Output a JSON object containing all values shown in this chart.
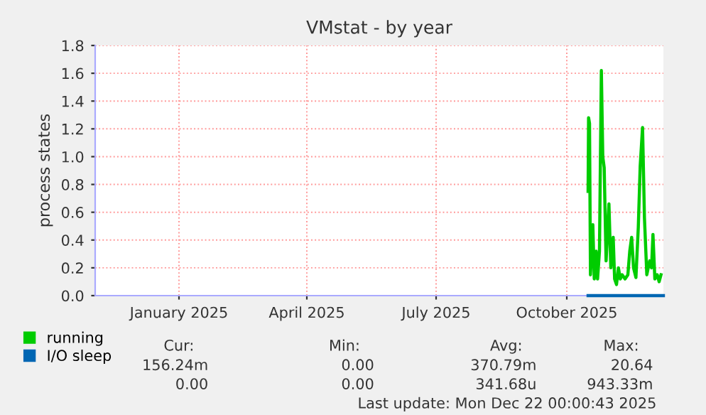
{
  "chart_data": {
    "type": "line",
    "title": "VMstat - by year",
    "ylabel": "process states",
    "xlim": [
      "2024-11-03",
      "2025-12-08"
    ],
    "xticks": [
      {
        "value": "2025-01-01",
        "label": "January 2025"
      },
      {
        "value": "2025-04-01",
        "label": "April 2025"
      },
      {
        "value": "2025-07-01",
        "label": "July 2025"
      },
      {
        "value": "2025-10-01",
        "label": "October 2025"
      }
    ],
    "ylim": [
      0,
      1.8
    ],
    "yticks": [
      {
        "value": 0,
        "label": "0.0"
      },
      {
        "value": 0.2,
        "label": "0.2"
      },
      {
        "value": 0.4,
        "label": "0.4"
      },
      {
        "value": 0.6,
        "label": "0.6"
      },
      {
        "value": 0.8,
        "label": "0.8"
      },
      {
        "value": 1.0,
        "label": "1.0"
      },
      {
        "value": 1.2,
        "label": "1.2"
      },
      {
        "value": 1.4,
        "label": "1.4"
      },
      {
        "value": 1.6,
        "label": "1.6"
      },
      {
        "value": 1.8,
        "label": "1.8"
      }
    ],
    "grid": true,
    "legend": "bottom left",
    "marker": "none",
    "line_style": "solid",
    "series": [
      {
        "name": "running",
        "color": "#00cc00",
        "x": [
          "2025-10-16",
          "2025-10-16T08:00",
          "2025-10-17",
          "2025-10-17T16:00",
          "2025-10-19T08:00",
          "2025-10-20T08:00",
          "2025-10-21T16:00",
          "2025-10-22T16:00",
          "2025-10-24",
          "2025-10-25T08:00",
          "2025-10-26T08:00",
          "2025-10-27T08:00",
          "2025-10-28T16:00",
          "2025-10-30T16:00",
          "2025-11-01",
          "2025-11-02T16:00",
          "2025-11-03T16:00",
          "2025-11-05",
          "2025-11-06T08:00",
          "2025-11-07T16:00",
          "2025-11-09",
          "2025-11-11",
          "2025-11-13",
          "2025-11-14T08:00",
          "2025-11-15T16:00",
          "2025-11-17",
          "2025-11-18T16:00",
          "2025-11-20T08:00",
          "2025-11-21T16:00",
          "2025-11-23T08:00",
          "2025-11-24T16:00",
          "2025-11-26T08:00",
          "2025-11-28T08:00",
          "2025-11-29T16:00",
          "2025-11-30T16:00",
          "2025-12-02",
          "2025-12-03T16:00",
          "2025-12-05",
          "2025-12-06T08:00"
        ],
        "values": [
          0.75,
          1.28,
          1.24,
          0.15,
          0.51,
          0.12,
          0.32,
          0.12,
          0.32,
          1.62,
          1.0,
          0.92,
          0.25,
          0.66,
          0.2,
          0.42,
          0.12,
          0.08,
          0.2,
          0.12,
          0.15,
          0.12,
          0.15,
          0.32,
          0.42,
          0.2,
          0.13,
          0.49,
          0.93,
          1.21,
          0.56,
          0.15,
          0.25,
          0.2,
          0.44,
          0.12,
          0.15,
          0.1,
          0.15
        ]
      },
      {
        "name": "I/O sleep",
        "color": "#0066b3",
        "x": [
          "2025-10-16",
          "2025-12-08"
        ],
        "values": [
          0,
          0
        ]
      }
    ],
    "annotations": [
      "Cur:",
      "Min:",
      "Avg:",
      "Max:",
      "156.24m",
      "0.00",
      "370.79m",
      "20.64",
      "0.00",
      "0.00",
      "341.68u",
      "943.33m",
      "Last update: Mon Dec 22 00:00:43 2025"
    ]
  }
}
